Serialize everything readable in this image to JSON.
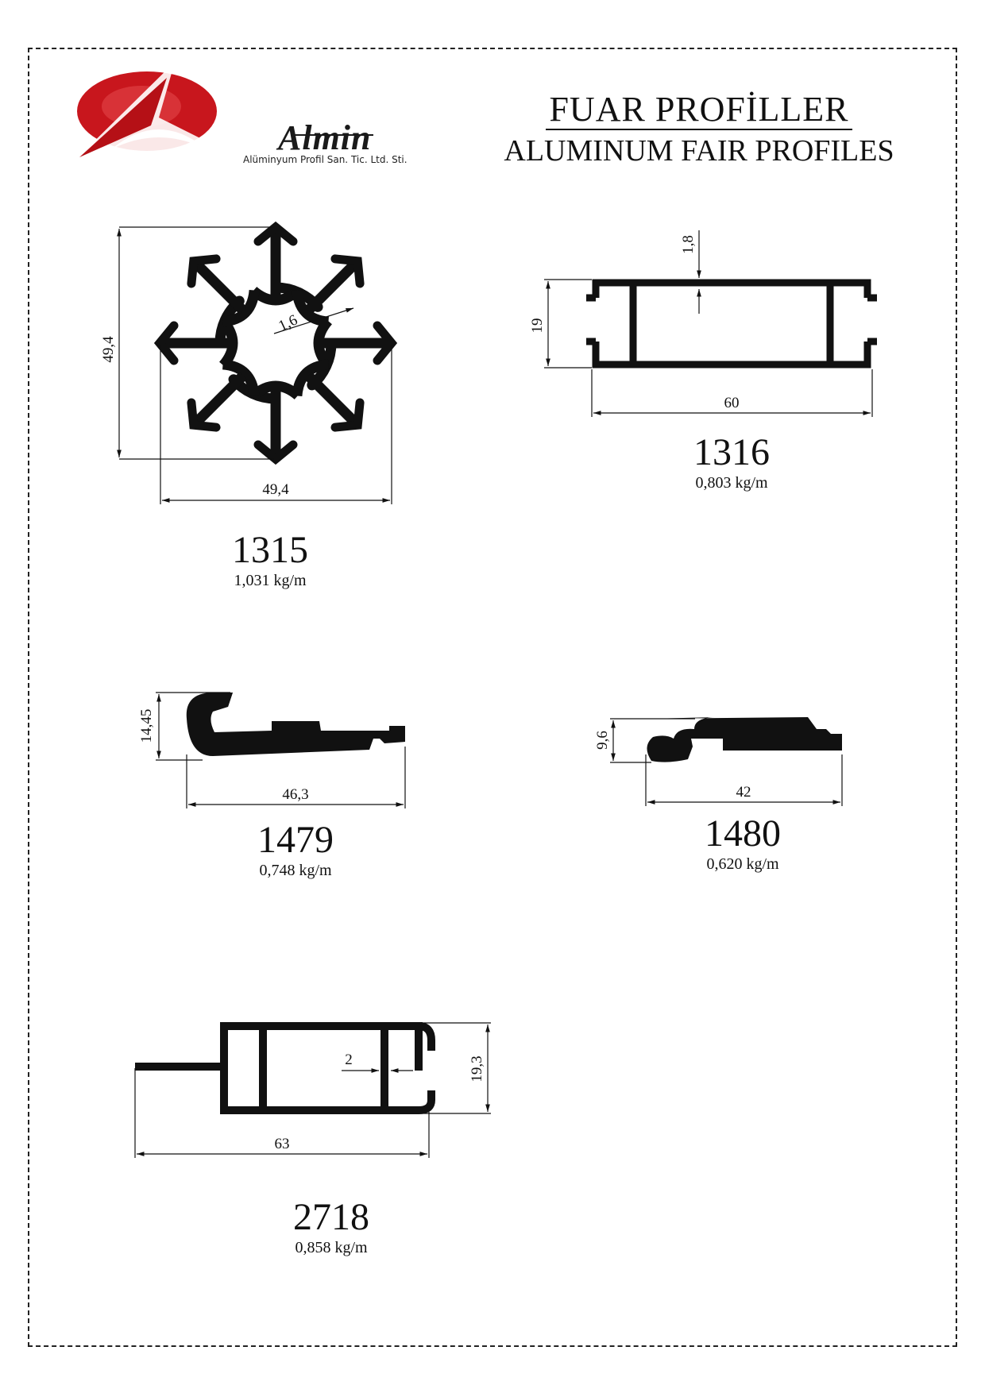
{
  "header": {
    "title_tr": "FUAR  PROFİLLER",
    "title_en": "ALUMINUM FAIR PROFILES"
  },
  "logo": {
    "name": "Almin",
    "subtitle": "Alüminyum Profil San. Tic. Ltd. Sti.",
    "icon": "almin-logo-icon",
    "colors": {
      "red": "#c8161d",
      "dark": "#1a1a1a"
    }
  },
  "profiles": [
    {
      "code": "1315",
      "weight": "1,031 kg/m",
      "dims": [
        "49,4",
        "49,4",
        "1,6"
      ]
    },
    {
      "code": "1316",
      "weight": "0,803 kg/m",
      "dims": [
        "1,8",
        "19",
        "60"
      ]
    },
    {
      "code": "1479",
      "weight": "0,748 kg/m",
      "dims": [
        "14,45",
        "46,3"
      ]
    },
    {
      "code": "1480",
      "weight": "0,620 kg/m",
      "dims": [
        "9,6",
        "42"
      ]
    },
    {
      "code": "2718",
      "weight": "0,858 kg/m",
      "dims": [
        "2",
        "19,3",
        "63"
      ]
    }
  ]
}
